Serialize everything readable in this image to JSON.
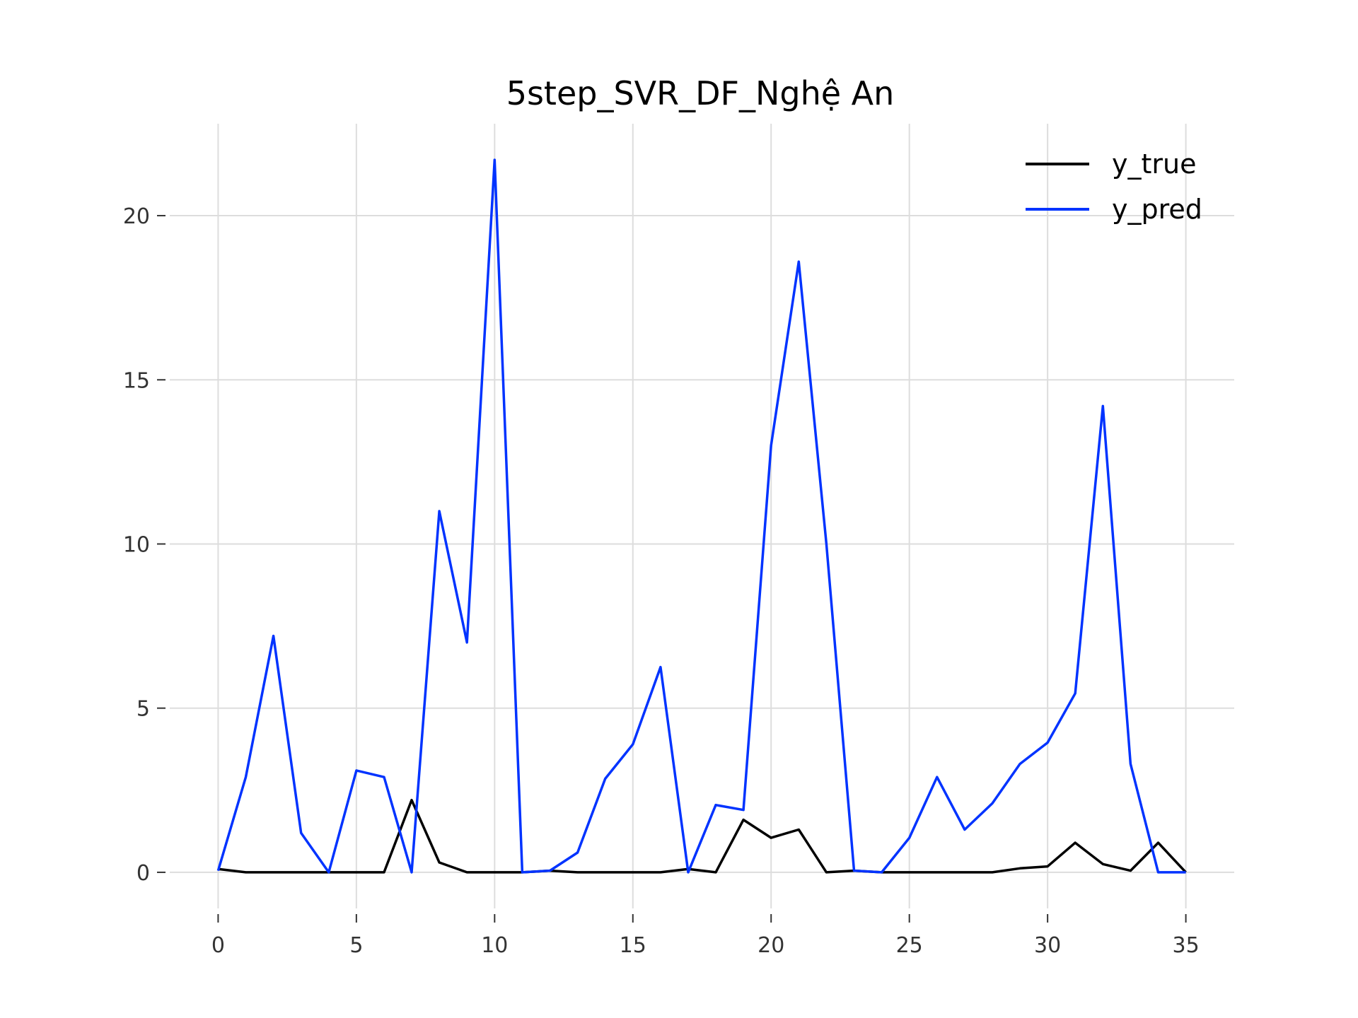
{
  "chart_data": {
    "type": "line",
    "title": "5step_SVR_DF_Nghệ An",
    "xlabel": "",
    "ylabel": "",
    "xlim": [
      -1.75,
      36.75
    ],
    "ylim": [
      -1.1,
      22.8
    ],
    "x_ticks": [
      0,
      5,
      10,
      15,
      20,
      25,
      30,
      35
    ],
    "y_ticks": [
      0,
      5,
      10,
      15,
      20
    ],
    "grid": true,
    "legend_position": "top-right",
    "x": [
      0,
      1,
      2,
      3,
      4,
      5,
      6,
      7,
      8,
      9,
      10,
      11,
      12,
      13,
      14,
      15,
      16,
      17,
      18,
      19,
      20,
      21,
      22,
      23,
      24,
      25,
      26,
      27,
      28,
      29,
      30,
      31,
      32,
      33,
      34,
      35
    ],
    "series": [
      {
        "name": "y_true",
        "color": "#000000",
        "values": [
          0.1,
          0,
          0,
          0,
          0,
          0,
          0,
          2.2,
          0.3,
          0,
          0,
          0,
          0.05,
          0,
          0,
          0,
          0,
          0.1,
          0,
          1.6,
          1.05,
          1.3,
          0,
          0.05,
          0,
          0,
          0,
          0,
          0,
          0.12,
          0.18,
          0.9,
          0.25,
          0.05,
          0.9,
          0
        ]
      },
      {
        "name": "y_pred",
        "color": "#0033ff",
        "values": [
          0.05,
          2.9,
          7.2,
          1.2,
          0,
          3.1,
          2.9,
          0,
          11,
          7,
          21.7,
          0,
          0.05,
          0.6,
          2.85,
          3.9,
          6.25,
          0,
          2.05,
          1.9,
          13,
          18.6,
          10,
          0.05,
          0,
          1.05,
          2.9,
          1.3,
          2.1,
          3.3,
          3.95,
          5.45,
          14.2,
          3.3,
          0,
          0
        ]
      }
    ]
  }
}
